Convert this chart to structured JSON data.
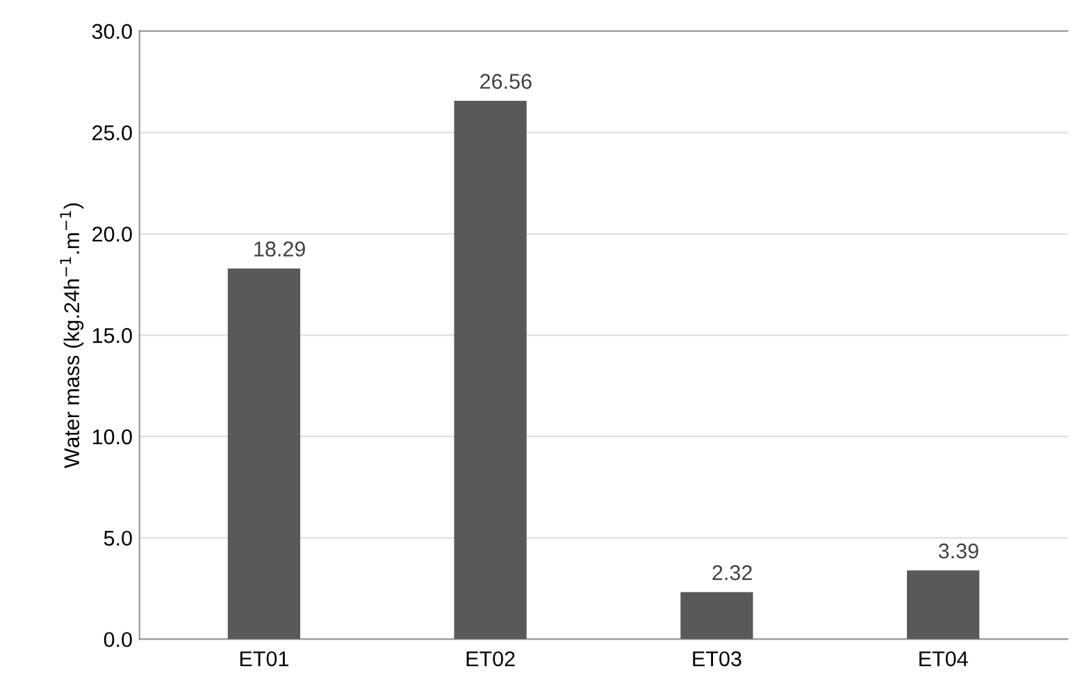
{
  "chart_data": {
    "type": "bar",
    "ylabel": "Water mass (kg.24h$^{−1}$.m$^{−1}$)",
    "categories": [
      "ET01",
      "ET02",
      "ET03",
      "ET04"
    ],
    "values": [
      18.29,
      26.56,
      2.32,
      3.39
    ],
    "color": "#595959",
    "ylim": [
      0,
      30
    ],
    "yticks": [
      {
        "value": 0,
        "label": "0.0"
      },
      {
        "value": 5,
        "label": "5.0"
      },
      {
        "value": 10,
        "label": "10.0"
      },
      {
        "value": 15,
        "label": "15.0"
      },
      {
        "value": 20,
        "label": "20.0"
      },
      {
        "value": 25,
        "label": "25.0"
      },
      {
        "value": 30,
        "label": "30.0"
      }
    ],
    "grid": "y",
    "data_labels": true
  }
}
